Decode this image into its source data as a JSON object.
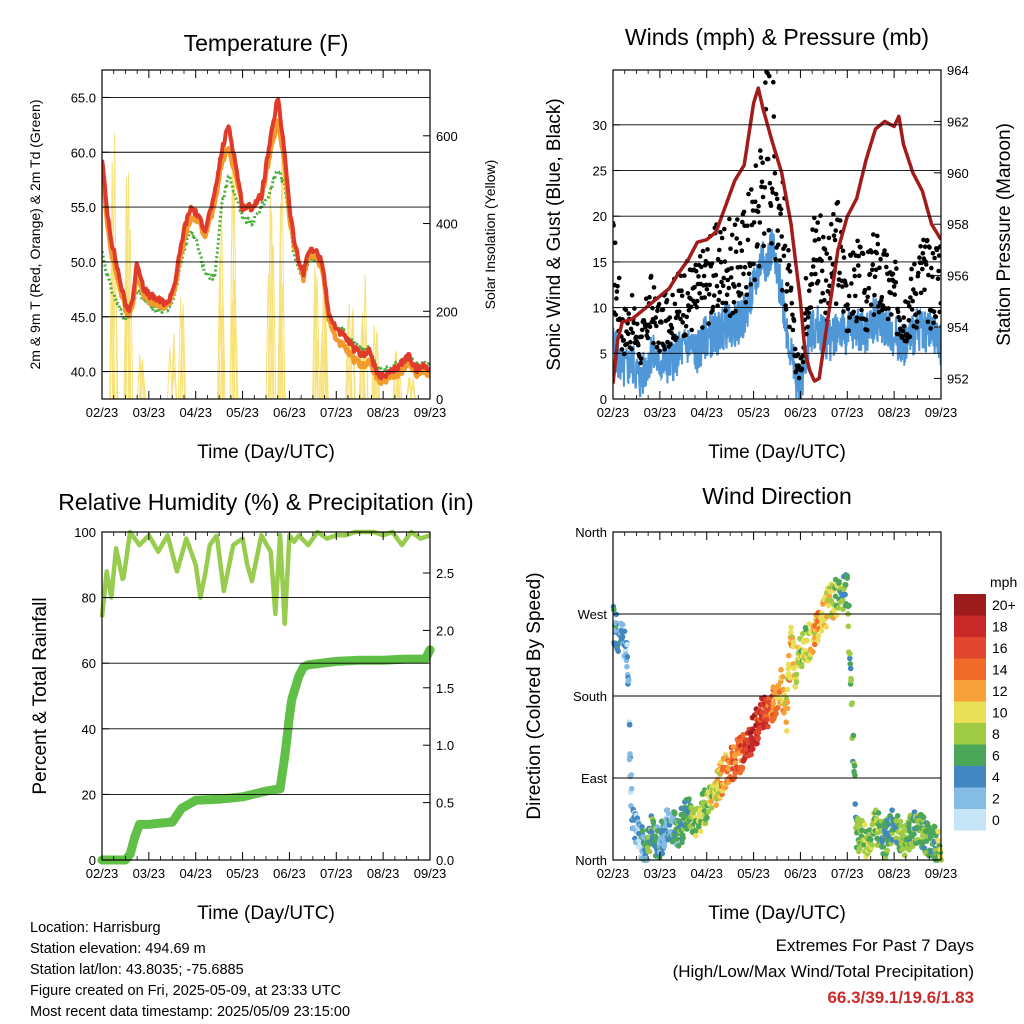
{
  "colors": {
    "temp_2m": "#e03a2a",
    "temp_9m": "#f39a2c",
    "dewpoint": "#4cae3c",
    "solar": "#f8e27a",
    "wind": "#4f97d6",
    "gust": "#000000",
    "pressure": "#a31c1c",
    "rh": "#98cc4e",
    "precip": "#5fbf46",
    "extremes_value": "#cc2a2a"
  },
  "chart_data": [
    {
      "type": "line",
      "title": "Temperature (F)",
      "xlabel": "Time (Day/UTC)",
      "ylabel": "2m & 9m T (Red, Orange) & 2m Td (Green)",
      "y2label": "Solar Insolation (Yellow)",
      "x_ticks": [
        "02/23",
        "03/23",
        "04/23",
        "05/23",
        "06/23",
        "07/23",
        "08/23",
        "09/23"
      ],
      "xlim": [
        0,
        7
      ],
      "ylim": [
        37.5,
        67.5
      ],
      "y_ticks": [
        "40.0",
        "45.0",
        "50.0",
        "55.0",
        "60.0",
        "65.0"
      ],
      "y2lim": [
        0,
        750
      ],
      "y2_ticks": [
        "0",
        "200",
        "400",
        "600"
      ],
      "grid": true,
      "series": [
        {
          "key": "t2m",
          "x": [
            0,
            0.1,
            0.2,
            0.3,
            0.45,
            0.55,
            0.65,
            0.75,
            0.9,
            1.0,
            1.2,
            1.4,
            1.55,
            1.75,
            1.9,
            2.0,
            2.2,
            2.4,
            2.55,
            2.7,
            2.85,
            3.0,
            3.2,
            3.4,
            3.55,
            3.75,
            3.9,
            4.0,
            4.1,
            4.2,
            4.3,
            4.4,
            4.55,
            4.7,
            4.85,
            5.0,
            5.2,
            5.4,
            5.55,
            5.7,
            5.85,
            6.0,
            6.2,
            6.4,
            6.55,
            6.7,
            6.85,
            7.0
          ],
          "y": [
            59.5,
            55,
            52,
            50,
            47,
            45.5,
            46.5,
            50,
            47.5,
            47,
            46.5,
            46.2,
            48,
            53,
            55,
            54.5,
            53,
            56,
            60,
            62.5,
            59,
            55,
            55,
            56,
            60,
            65,
            60,
            55,
            52,
            50,
            49,
            51,
            51,
            50,
            45,
            44,
            43,
            42,
            41.5,
            42,
            40,
            39.5,
            40,
            40.8,
            41.5,
            40.2,
            40.5,
            40.3
          ]
        },
        {
          "key": "t9m",
          "x": [
            0,
            0.1,
            0.2,
            0.3,
            0.45,
            0.55,
            0.65,
            0.75,
            0.9,
            1.0,
            1.2,
            1.4,
            1.55,
            1.75,
            1.9,
            2.0,
            2.2,
            2.4,
            2.55,
            2.7,
            2.85,
            3.0,
            3.2,
            3.4,
            3.55,
            3.75,
            3.9,
            4.0,
            4.1,
            4.2,
            4.3,
            4.4,
            4.55,
            4.7,
            4.85,
            5.0,
            5.2,
            5.4,
            5.55,
            5.7,
            5.85,
            6.0,
            6.2,
            6.4,
            6.55,
            6.7,
            6.85,
            7.0
          ],
          "y": [
            58.5,
            54,
            51,
            49,
            46.5,
            45,
            46,
            49,
            47,
            46.5,
            46,
            46,
            47.5,
            52,
            54,
            54,
            52.5,
            55,
            59,
            60.5,
            58,
            55,
            55,
            56,
            59,
            63,
            59,
            54,
            51.5,
            50,
            48.5,
            50.5,
            50.5,
            49.5,
            44.5,
            43,
            42,
            41,
            40.5,
            41,
            39.5,
            39,
            39.5,
            40,
            41,
            39.8,
            40,
            39.8
          ]
        },
        {
          "key": "td2m",
          "x": [
            0,
            0.1,
            0.2,
            0.3,
            0.45,
            0.55,
            0.65,
            0.75,
            0.9,
            1.0,
            1.2,
            1.4,
            1.55,
            1.75,
            1.9,
            2.0,
            2.2,
            2.4,
            2.55,
            2.7,
            2.85,
            3.0,
            3.2,
            3.4,
            3.55,
            3.75,
            3.9,
            4.0,
            4.1,
            4.2,
            4.3,
            4.4,
            4.55,
            4.7,
            4.85,
            5.0,
            5.2,
            5.4,
            5.55,
            5.7,
            5.85,
            6.0,
            6.2,
            6.4,
            6.55,
            6.7,
            6.85,
            7.0
          ],
          "y": [
            51,
            49,
            47.5,
            46.5,
            45,
            45,
            46,
            47.5,
            46.5,
            46,
            45.5,
            45.8,
            47,
            51,
            53,
            52,
            49,
            48.5,
            55,
            58,
            56,
            54,
            53.5,
            55,
            56,
            58.5,
            57,
            54,
            50.5,
            49.5,
            48.5,
            50,
            50.5,
            49,
            45,
            44,
            43.5,
            42.5,
            42,
            42,
            40.5,
            40,
            40.5,
            40.8,
            41.2,
            40.5,
            40.8,
            40.6
          ]
        },
        {
          "key": "solar",
          "axis": "y2",
          "peaks_x": [
            0.25,
            0.55,
            0.85,
            1.5,
            1.7,
            2.55,
            2.8,
            3.6,
            3.8,
            4.55,
            4.75,
            5.3,
            5.6,
            5.85,
            6.3,
            6.6
          ],
          "peaks_y": [
            650,
            580,
            120,
            200,
            250,
            500,
            640,
            550,
            720,
            380,
            420,
            220,
            300,
            180,
            120,
            60
          ]
        }
      ]
    },
    {
      "type": "line",
      "title": "Winds (mph) & Pressure (mb)",
      "xlabel": "Time (Day/UTC)",
      "ylabel": "Sonic Wind & Gust (Blue, Black)",
      "y2label": "Station Pressure (Maroon)",
      "x_ticks": [
        "02/23",
        "03/23",
        "04/23",
        "05/23",
        "06/23",
        "07/23",
        "08/23",
        "09/23"
      ],
      "xlim": [
        0,
        7
      ],
      "ylim": [
        0,
        36
      ],
      "y_ticks": [
        "0",
        "5",
        "10",
        "15",
        "20",
        "25",
        "30"
      ],
      "y2lim": [
        951.2,
        964
      ],
      "y2_ticks": [
        "952",
        "954",
        "956",
        "958",
        "960",
        "962",
        "964"
      ],
      "grid": true,
      "series": [
        {
          "key": "wind",
          "x": [
            0,
            0.2,
            0.4,
            0.6,
            0.8,
            1.0,
            1.2,
            1.4,
            1.6,
            1.8,
            2.0,
            2.2,
            2.4,
            2.6,
            2.8,
            3.0,
            3.1,
            3.2,
            3.3,
            3.4,
            3.5,
            3.6,
            3.7,
            3.8,
            3.9,
            4.0,
            4.1,
            4.2,
            4.4,
            4.6,
            4.8,
            5.0,
            5.2,
            5.4,
            5.6,
            5.8,
            6.0,
            6.2,
            6.4,
            6.6,
            6.8,
            7.0
          ],
          "y": [
            6,
            3,
            4,
            2,
            5,
            4,
            4,
            5,
            6,
            5,
            7,
            7,
            8,
            8,
            9,
            12,
            14,
            16,
            15,
            17,
            13,
            12,
            8,
            5,
            2,
            1,
            4,
            7,
            8,
            6,
            8,
            7,
            8,
            7,
            9,
            8,
            7,
            6,
            7,
            8,
            7,
            6
          ]
        },
        {
          "key": "gust",
          "x": [
            0,
            0.2,
            0.4,
            0.6,
            0.8,
            1.0,
            1.2,
            1.4,
            1.6,
            1.8,
            2.0,
            2.2,
            2.4,
            2.6,
            2.8,
            3.0,
            3.1,
            3.2,
            3.3,
            3.4,
            3.5,
            3.6,
            3.7,
            3.8,
            3.9,
            4.0,
            4.1,
            4.2,
            4.4,
            4.6,
            4.8,
            5.0,
            5.2,
            5.4,
            5.6,
            5.8,
            6.0,
            6.2,
            6.4,
            6.6,
            6.8,
            7.0
          ],
          "y": [
            16,
            8,
            9,
            6,
            11,
            8,
            10,
            11,
            12,
            12,
            14,
            15,
            16,
            15,
            17,
            20,
            22,
            27,
            31,
            29,
            25,
            20,
            16,
            10,
            5,
            3,
            10,
            16,
            18,
            14,
            18,
            12,
            14,
            12,
            15,
            13,
            12,
            10,
            12,
            15,
            13,
            16
          ]
        },
        {
          "key": "pressure",
          "axis": "y2",
          "x": [
            0,
            0.1,
            0.2,
            0.4,
            0.6,
            0.8,
            1.0,
            1.2,
            1.4,
            1.6,
            1.8,
            2.0,
            2.2,
            2.4,
            2.6,
            2.8,
            2.9,
            3.0,
            3.1,
            3.2,
            3.4,
            3.6,
            3.8,
            4.0,
            4.1,
            4.2,
            4.3,
            4.4,
            4.6,
            4.8,
            5.0,
            5.2,
            5.4,
            5.6,
            5.8,
            6.0,
            6.1,
            6.2,
            6.4,
            6.6,
            6.8,
            7.0
          ],
          "y": [
            951.8,
            953.5,
            954.2,
            954.3,
            954.6,
            954.9,
            955.2,
            955.5,
            956.1,
            956.6,
            957.3,
            957.4,
            957.7,
            958.7,
            959.7,
            960.3,
            961.5,
            962.7,
            963.3,
            962.5,
            961.2,
            960.0,
            958.0,
            955.0,
            953.0,
            952.3,
            951.9,
            952.0,
            954.5,
            957.0,
            958.3,
            959.0,
            960.5,
            961.7,
            962.0,
            961.8,
            962.2,
            961.1,
            960.0,
            959.3,
            958.0,
            957.4
          ]
        }
      ]
    },
    {
      "type": "line",
      "title": "Relative Humidity (%) & Precipitation (in)",
      "xlabel": "Time (Day/UTC)",
      "ylabel": "Percent & Total Rainfall",
      "x_ticks": [
        "02/23",
        "03/23",
        "04/23",
        "05/23",
        "06/23",
        "07/23",
        "08/23",
        "09/23"
      ],
      "xlim": [
        0,
        7
      ],
      "ylim": [
        0,
        100
      ],
      "y_ticks": [
        "0",
        "20",
        "40",
        "60",
        "80",
        "100"
      ],
      "y2lim": [
        0,
        2.857
      ],
      "y2_ticks": [
        "0.0",
        "0.5",
        "1.0",
        "1.5",
        "2.0",
        "2.5"
      ],
      "grid": true,
      "series": [
        {
          "key": "rh",
          "x": [
            0,
            0.1,
            0.2,
            0.3,
            0.45,
            0.6,
            0.8,
            1.0,
            1.2,
            1.4,
            1.6,
            1.8,
            2.0,
            2.1,
            2.2,
            2.3,
            2.45,
            2.6,
            2.8,
            3.0,
            3.1,
            3.2,
            3.4,
            3.6,
            3.7,
            3.8,
            3.9,
            4.0,
            4.1,
            4.2,
            4.4,
            4.6,
            4.8,
            5.0,
            5.2,
            5.4,
            5.6,
            5.8,
            6.0,
            6.2,
            6.4,
            6.6,
            6.8,
            7.0
          ],
          "y": [
            74,
            88,
            80,
            95,
            85,
            100,
            96,
            99,
            94,
            99,
            88,
            98,
            90,
            80,
            87,
            96,
            99,
            82,
            96,
            98,
            90,
            85,
            99,
            94,
            75,
            99,
            72,
            99,
            97,
            99,
            96,
            100,
            98,
            99,
            99,
            100,
            100,
            100,
            99,
            100,
            96,
            100,
            98,
            99
          ]
        },
        {
          "key": "precip",
          "axis": "y2",
          "x": [
            0,
            0.5,
            0.6,
            0.7,
            0.8,
            1.0,
            1.2,
            1.5,
            1.7,
            2.0,
            2.5,
            3.0,
            3.5,
            3.8,
            3.9,
            4.0,
            4.05,
            4.2,
            4.3,
            4.4,
            4.6,
            5.0,
            5.5,
            6.0,
            6.5,
            6.9,
            7.0
          ],
          "y": [
            0,
            0,
            0.05,
            0.2,
            0.31,
            0.31,
            0.32,
            0.33,
            0.45,
            0.52,
            0.53,
            0.55,
            0.6,
            0.62,
            0.9,
            1.25,
            1.4,
            1.6,
            1.68,
            1.7,
            1.71,
            1.73,
            1.74,
            1.74,
            1.75,
            1.75,
            1.83
          ]
        }
      ]
    },
    {
      "type": "scatter",
      "title": "Wind Direction",
      "xlabel": "Time (Day/UTC)",
      "ylabel": "Direction (Colored By Speed)",
      "x_ticks": [
        "02/23",
        "03/23",
        "04/23",
        "05/23",
        "06/23",
        "07/23",
        "08/23",
        "09/23"
      ],
      "xlim": [
        0,
        7
      ],
      "ylim": [
        0,
        360
      ],
      "y_ticks": [
        "North",
        "East",
        "South",
        "West",
        "North"
      ],
      "grid": true,
      "legend": {
        "title": "mph",
        "labels": [
          "20+",
          "18",
          "16",
          "14",
          "12",
          "10",
          "8",
          "6",
          "4",
          "2",
          "0"
        ],
        "colors": [
          "#9c1c1c",
          "#c92828",
          "#e0452e",
          "#f06a2a",
          "#f7a13a",
          "#e9df58",
          "#9fcc44",
          "#4ba65a",
          "#4286c2",
          "#84bce6",
          "#c5e4f6"
        ],
        "position": "right"
      },
      "series": [
        {
          "key": "dir",
          "x": [
            0,
            0.1,
            0.2,
            0.3,
            0.4,
            0.5,
            0.6,
            0.7,
            0.8,
            1.0,
            1.2,
            1.4,
            1.6,
            1.8,
            2.0,
            2.2,
            2.4,
            2.6,
            2.8,
            3.0,
            3.2,
            3.4,
            3.5,
            3.6,
            3.7,
            3.8,
            3.9,
            4.0,
            4.2,
            4.4,
            4.6,
            4.8,
            5.0,
            5.2,
            5.4,
            5.6,
            5.8,
            6.0,
            6.2,
            6.4,
            6.6,
            6.8,
            7.0
          ],
          "y": [
            260,
            250,
            240,
            230,
            60,
            30,
            20,
            10,
            30,
            20,
            40,
            30,
            50,
            45,
            60,
            80,
            100,
            110,
            120,
            140,
            160,
            170,
            180,
            190,
            160,
            240,
            200,
            230,
            240,
            260,
            280,
            290,
            300,
            30,
            20,
            40,
            20,
            40,
            20,
            35,
            30,
            20,
            10
          ],
          "speed": [
            4,
            4,
            2,
            3,
            2,
            2,
            3,
            4,
            6,
            4,
            3,
            5,
            6,
            8,
            8,
            10,
            12,
            14,
            16,
            18,
            16,
            14,
            12,
            12,
            10,
            12,
            10,
            8,
            10,
            12,
            10,
            8,
            6,
            6,
            8,
            8,
            6,
            5,
            8,
            6,
            7,
            6,
            8
          ]
        }
      ]
    }
  ],
  "info": {
    "location": "Location: Harrisburg",
    "elevation": "Station elevation: 494.69 m",
    "latlon": "Station lat/lon: 43.8035; -75.6885",
    "created": "Figure created on Fri, 2025-05-09, at 23:33 UTC",
    "recent": "Most recent data timestamp: 2025/05/09 23:15:00"
  },
  "extremes": {
    "line1": "Extremes For Past 7 Days",
    "line2": "(High/Low/Max Wind/Total Precipitation)",
    "values": "66.3/39.1/19.6/1.83"
  }
}
